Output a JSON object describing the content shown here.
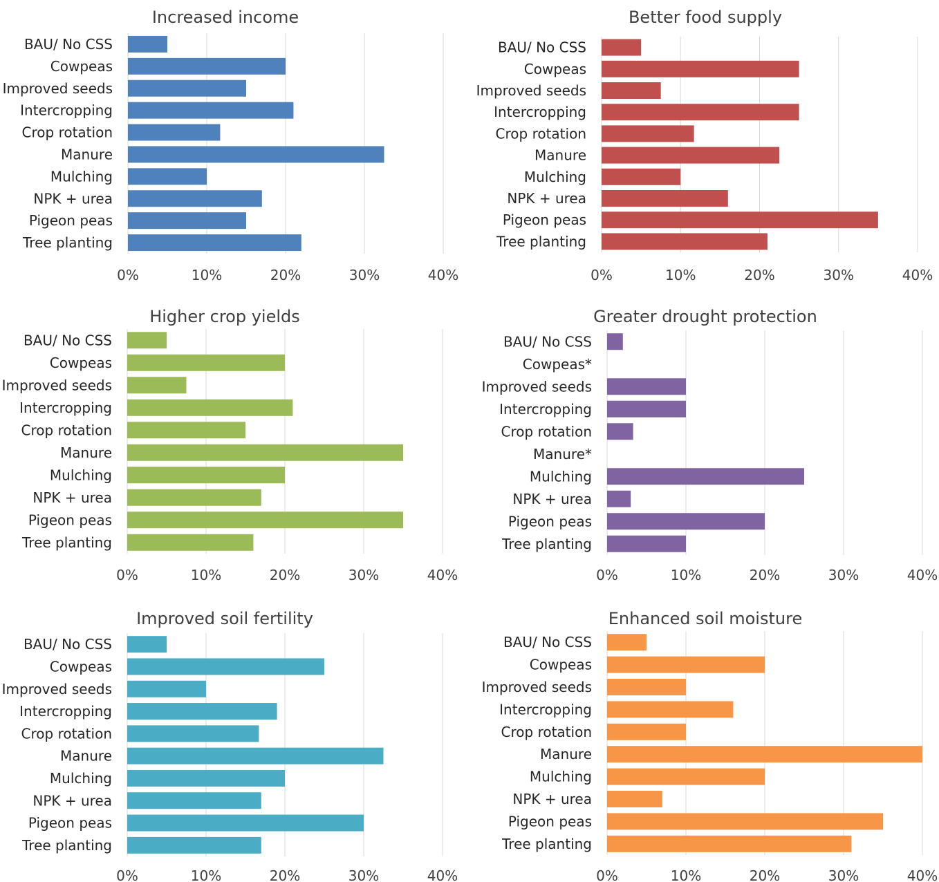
{
  "chart_data": [
    {
      "type": "bar",
      "orientation": "horizontal",
      "title": "Increased income",
      "categories": [
        "BAU/ No CSS",
        "Cowpeas",
        "Improved seeds",
        "Intercropping",
        "Crop rotation",
        "Manure",
        "Mulching",
        "NPK + urea",
        "Pigeon peas",
        "Tree planting"
      ],
      "values": [
        0.05,
        0.2,
        0.15,
        0.21,
        0.117,
        0.325,
        0.1,
        0.17,
        0.15,
        0.22
      ],
      "xlim": [
        0,
        0.4
      ],
      "ticks": [
        0,
        0.1,
        0.2,
        0.3,
        0.4
      ],
      "tick_labels": [
        "0%",
        "10%",
        "20%",
        "30%",
        "40%"
      ],
      "color": "#4f81bd",
      "grid": true
    },
    {
      "type": "bar",
      "orientation": "horizontal",
      "title": "Better food supply",
      "categories": [
        "BAU/ No CSS",
        "Cowpeas",
        "Improved seeds",
        "Intercropping",
        "Crop rotation",
        "Manure",
        "Mulching",
        "NPK + urea",
        "Pigeon peas",
        "Tree planting"
      ],
      "values": [
        0.05,
        0.25,
        0.075,
        0.25,
        0.117,
        0.225,
        0.1,
        0.16,
        0.35,
        0.21
      ],
      "xlim": [
        0,
        0.4
      ],
      "ticks": [
        0,
        0.1,
        0.2,
        0.3,
        0.4
      ],
      "tick_labels": [
        "0%",
        "10%",
        "20%",
        "30%",
        "40%"
      ],
      "color": "#c0504d",
      "grid": true
    },
    {
      "type": "bar",
      "orientation": "horizontal",
      "title": "Higher crop yields",
      "categories": [
        "BAU/ No CSS",
        "Cowpeas",
        "Improved seeds",
        "Intercropping",
        "Crop rotation",
        "Manure",
        "Mulching",
        "NPK + urea",
        "Pigeon peas",
        "Tree planting"
      ],
      "values": [
        0.05,
        0.2,
        0.075,
        0.21,
        0.15,
        0.35,
        0.2,
        0.17,
        0.35,
        0.16
      ],
      "xlim": [
        0,
        0.4
      ],
      "ticks": [
        0,
        0.1,
        0.2,
        0.3,
        0.4
      ],
      "tick_labels": [
        "0%",
        "10%",
        "20%",
        "30%",
        "40%"
      ],
      "color": "#9bbb59",
      "grid": true
    },
    {
      "type": "bar",
      "orientation": "horizontal",
      "title": "Greater drought protection",
      "categories": [
        "BAU/ No CSS",
        "Cowpeas*",
        "Improved seeds",
        "Intercropping",
        "Crop rotation",
        "Manure*",
        "Mulching",
        "NPK + urea",
        "Pigeon peas",
        "Tree planting"
      ],
      "values": [
        0.02,
        0,
        0.1,
        0.1,
        0.033,
        0,
        0.25,
        0.03,
        0.2,
        0.1
      ],
      "xlim": [
        0,
        0.4
      ],
      "ticks": [
        0,
        0.1,
        0.2,
        0.3,
        0.4
      ],
      "tick_labels": [
        "0%",
        "10%",
        "20%",
        "30%",
        "40%"
      ],
      "color": "#8064a2",
      "grid": true
    },
    {
      "type": "bar",
      "orientation": "horizontal",
      "title": "Improved soil fertility",
      "categories": [
        "BAU/ No CSS",
        "Cowpeas",
        "Improved seeds",
        "Intercropping",
        "Crop rotation",
        "Manure",
        "Mulching",
        "NPK + urea",
        "Pigeon peas",
        "Tree planting"
      ],
      "values": [
        0.05,
        0.25,
        0.1,
        0.19,
        0.167,
        0.325,
        0.2,
        0.17,
        0.3,
        0.17
      ],
      "xlim": [
        0,
        0.4
      ],
      "ticks": [
        0,
        0.1,
        0.2,
        0.3,
        0.4
      ],
      "tick_labels": [
        "0%",
        "10%",
        "20%",
        "30%",
        "40%"
      ],
      "color": "#4bacc6",
      "grid": true
    },
    {
      "type": "bar",
      "orientation": "horizontal",
      "title": "Enhanced soil moisture",
      "categories": [
        "BAU/ No CSS",
        "Cowpeas",
        "Improved seeds",
        "Intercropping",
        "Crop rotation",
        "Manure",
        "Mulching",
        "NPK + urea",
        "Pigeon peas",
        "Tree planting"
      ],
      "values": [
        0.05,
        0.2,
        0.1,
        0.16,
        0.1,
        0.4,
        0.2,
        0.07,
        0.35,
        0.31
      ],
      "xlim": [
        0,
        0.4
      ],
      "ticks": [
        0,
        0.1,
        0.2,
        0.3,
        0.4
      ],
      "tick_labels": [
        "0%",
        "10%",
        "20%",
        "30%",
        "40%"
      ],
      "color": "#f79646",
      "grid": true
    }
  ]
}
